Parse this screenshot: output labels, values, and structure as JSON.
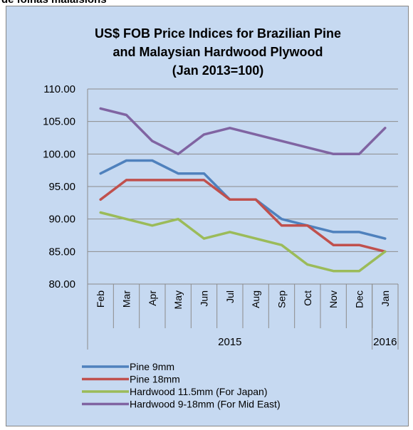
{
  "caption": "de folhas malaisions",
  "chart_data": {
    "type": "line",
    "title": [
      "US$ FOB Price Indices for Brazilian Pine",
      "and Malaysian Hardwood Plywood",
      "(Jan 2013=100)"
    ],
    "categories": [
      "Feb",
      "Mar",
      "Apr",
      "May",
      "Jun",
      "Jul",
      "Aug",
      "Sep",
      "Oct",
      "Nov",
      "Dec",
      "Jan"
    ],
    "groups": [
      {
        "label": "2015",
        "count": 11
      },
      {
        "label": "2016",
        "count": 1
      }
    ],
    "series": [
      {
        "name": "Pine 9mm",
        "color": "#4f81bd",
        "values": [
          97,
          99,
          99,
          97,
          97,
          93,
          93,
          90,
          89,
          88,
          88,
          87
        ]
      },
      {
        "name": "Pine 18mm",
        "color": "#c0504d",
        "values": [
          93,
          96,
          96,
          96,
          96,
          93,
          93,
          89,
          89,
          86,
          86,
          85
        ]
      },
      {
        "name": "Hardwood 11.5mm (For Japan)",
        "color": "#9bbb59",
        "values": [
          91,
          90,
          89,
          90,
          87,
          88,
          87,
          86,
          83,
          82,
          82,
          85
        ]
      },
      {
        "name": "Hardwood 9-18mm (For Mid East)",
        "color": "#8064a2",
        "values": [
          107,
          106,
          102,
          100,
          103,
          104,
          103,
          102,
          101,
          100,
          100,
          104
        ]
      }
    ],
    "ylim": [
      80,
      110
    ],
    "yticks": [
      {
        "value": 80,
        "label": "80.00"
      },
      {
        "value": 85,
        "label": "85.00"
      },
      {
        "value": 90,
        "label": "90.00"
      },
      {
        "value": 95,
        "label": "95.00"
      },
      {
        "value": 100,
        "label": "100.00"
      },
      {
        "value": 105,
        "label": "105.00"
      },
      {
        "value": 110,
        "label": "110.00"
      }
    ],
    "grid": true,
    "legend": "bottom"
  }
}
